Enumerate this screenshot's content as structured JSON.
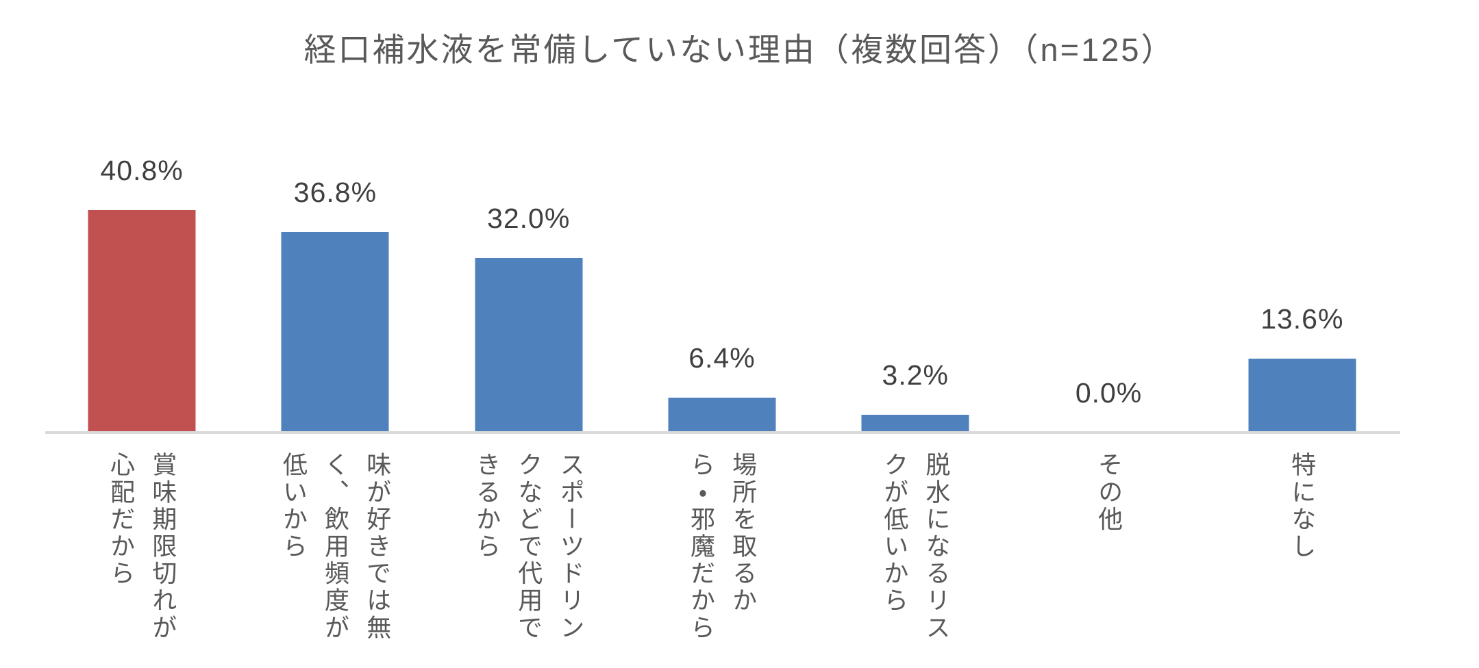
{
  "chart_data": {
    "type": "bar",
    "title": "経口補水液を常備していない理由（複数回答）（n=125）",
    "n": 125,
    "categories": [
      "賞味期限切れが心配だから",
      "味が好きでは無く、飲用頻度が低いから",
      "スポーツドリンクなどで代用できるから",
      "場所を取るから・邪魔だから",
      "脱水になるリスクが低いから",
      "その他",
      "特になし"
    ],
    "categories_display": [
      "賞味期限切れが\n心配だから",
      "味が好きでは無\nく、飲用頻度が\n低いから",
      "スポーツドリン\nクなどで代用で\nきるから",
      "場所を取るか\nら・邪魔だから",
      "脱水になるリス\nクが低いから",
      "その他",
      "特になし"
    ],
    "values": [
      40.8,
      36.8,
      32.0,
      6.4,
      3.2,
      0.0,
      13.6
    ],
    "value_labels": [
      "40.8%",
      "36.8%",
      "32.0%",
      "6.4%",
      "3.2%",
      "0.0%",
      "13.6%"
    ],
    "unit": "%",
    "highlight_index": 0,
    "colors": {
      "highlight": "#C15150",
      "default": "#4F81BD",
      "axis_line": "#D9D9D9",
      "title_text": "#595959",
      "value_text": "#3F3F3F",
      "category_text": "#595959",
      "background": "#FFFFFF"
    },
    "orientation": "vertical",
    "grid": false,
    "legend": false,
    "y_axis_visible": false,
    "ylim": [
      0,
      45
    ],
    "value_label_position": "above-bar",
    "category_label_writing_mode": "vertical-rl"
  }
}
